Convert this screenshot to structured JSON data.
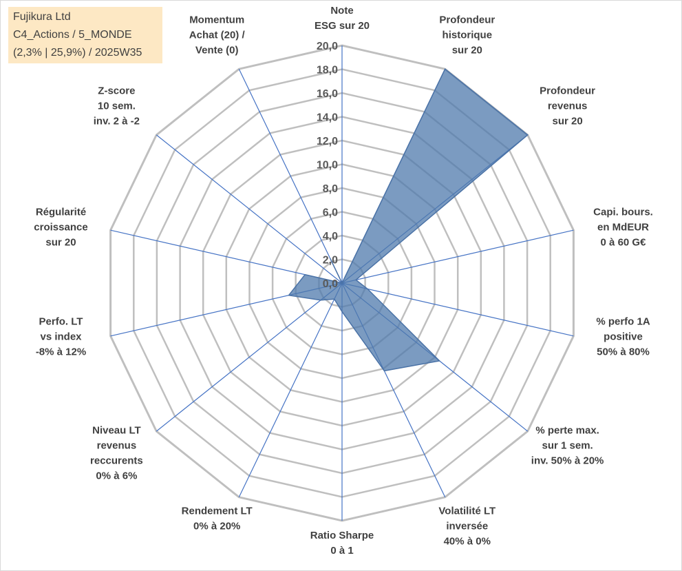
{
  "info": {
    "line1": "Fujikura Ltd",
    "line2": "C4_Actions / 5_MONDE",
    "line3": "(2,3% | 25,9%) / 2025W35"
  },
  "chart_data": {
    "type": "radar",
    "rmin": 0,
    "rmax": 20,
    "tick_step": 2,
    "tick_labels": [
      "0,0",
      "2,0",
      "4,0",
      "6,0",
      "8,0",
      "10,0",
      "12,0",
      "14,0",
      "16,0",
      "18,0",
      "20,0"
    ],
    "axes": [
      [
        "Note",
        "ESG sur 20"
      ],
      [
        "Profondeur",
        "historique",
        "sur 20"
      ],
      [
        "Profondeur",
        "revenus",
        "sur 20"
      ],
      [
        "Capi. bours.",
        "en MdEUR",
        "0 à 60 G€"
      ],
      [
        "% perfo 1A",
        "positive",
        "50% à 80%"
      ],
      [
        "% perte max.",
        "sur 1 sem.",
        "inv. 50% à 20%"
      ],
      [
        "Volatilité LT",
        "inversée",
        "40% à 0%"
      ],
      [
        "Ratio Sharpe",
        "0 à 1"
      ],
      [
        "Rendement LT",
        "0% à 20%"
      ],
      [
        "Niveau LT",
        "revenus",
        "reccurents",
        "0% à 6%"
      ],
      [
        "Perfo. LT",
        "vs index",
        "-8% à 12%"
      ],
      [
        "Régularité",
        "croissance",
        "sur 20"
      ],
      [
        "Z-score",
        "10 sem.",
        "inv. 2 à -2"
      ],
      [
        "Momentum",
        "Achat (20) /",
        "Vente (0)"
      ]
    ],
    "series": [
      {
        "values": [
          0,
          20,
          20,
          1.2,
          2.2,
          10.5,
          8.2,
          2.4,
          1.5,
          2.3,
          4.6,
          3.2,
          0,
          2.3
        ]
      }
    ],
    "colors": {
      "fill": "#4f79ac",
      "edge": "#4a72a6",
      "grid": "#bfbfbf",
      "spoke": "#4472c4"
    }
  }
}
